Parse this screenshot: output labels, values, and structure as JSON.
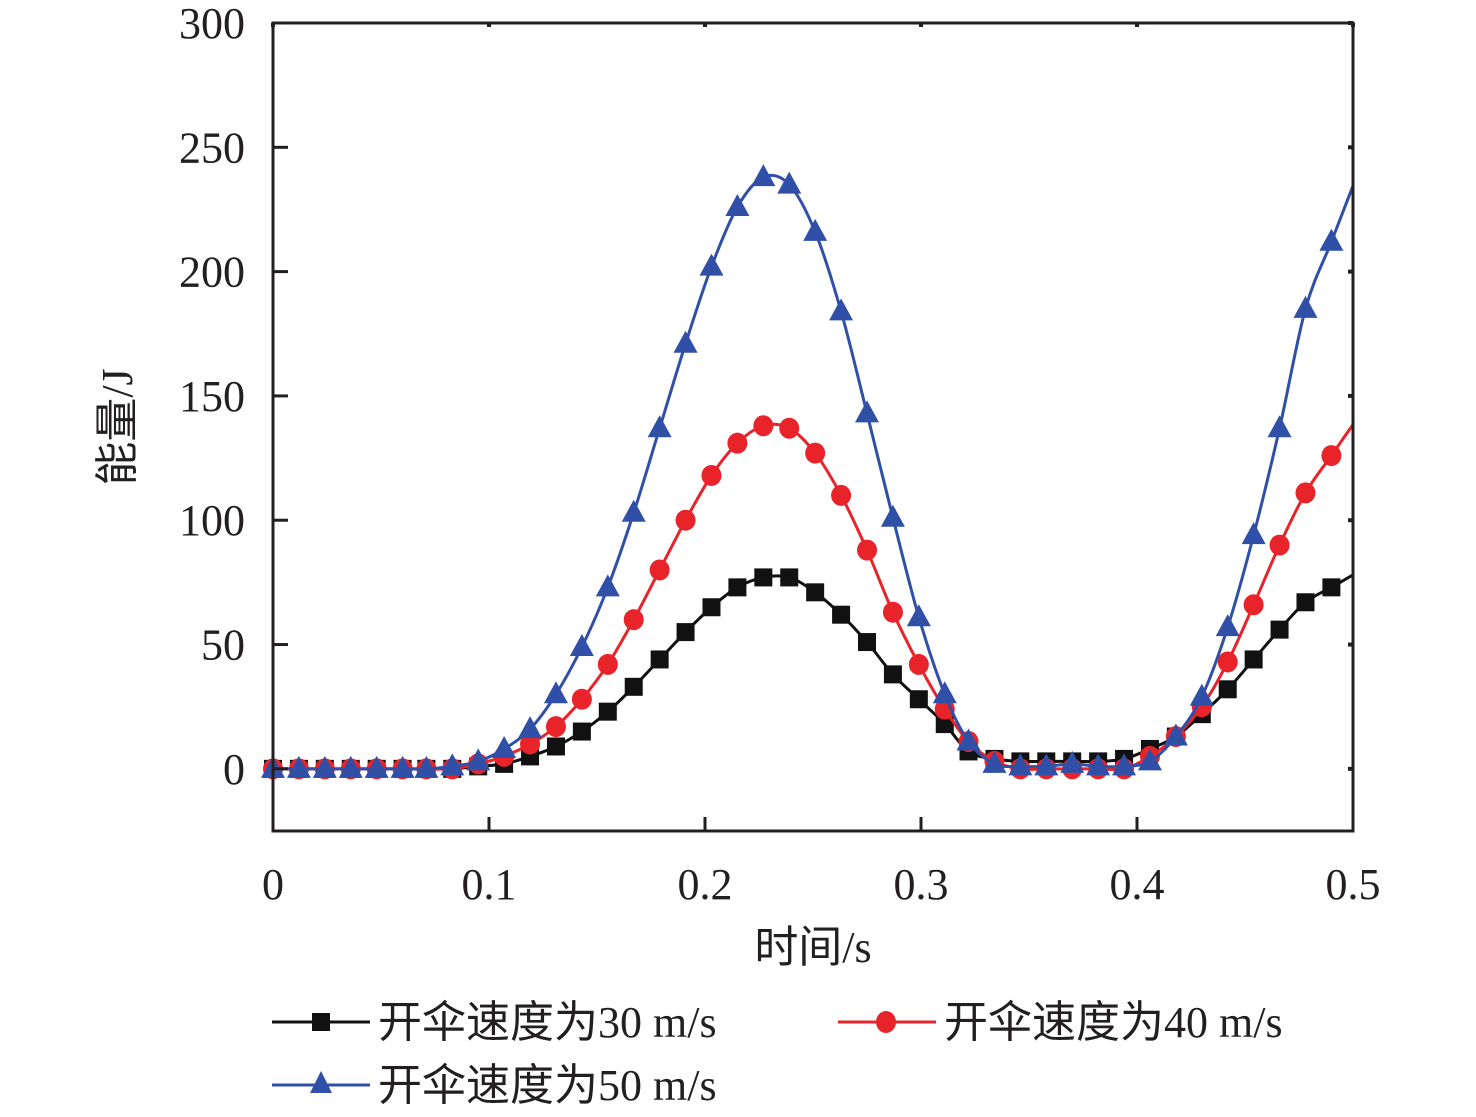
{
  "chart_data": {
    "type": "line",
    "title": "",
    "xlabel": "时间/s",
    "ylabel": "能量/J",
    "xlim": [
      0,
      0.5
    ],
    "ylim": [
      -25,
      300
    ],
    "xticks": [
      "0",
      "0.1",
      "0.2",
      "0.3",
      "0.4",
      "0.5"
    ],
    "xtick_values": [
      0,
      0.1,
      0.2,
      0.3,
      0.4,
      0.5
    ],
    "yticks": [
      "0",
      "50",
      "100",
      "150",
      "200",
      "250",
      "300"
    ],
    "ytick_values": [
      0,
      50,
      100,
      150,
      200,
      250,
      300
    ],
    "grid": false,
    "legend_position": "bottom",
    "x": [
      0,
      0.012,
      0.024,
      0.036,
      0.048,
      0.06,
      0.071,
      0.083,
      0.095,
      0.107,
      0.119,
      0.131,
      0.143,
      0.155,
      0.167,
      0.179,
      0.191,
      0.203,
      0.215,
      0.227,
      0.239,
      0.251,
      0.263,
      0.275,
      0.287,
      0.299,
      0.311,
      0.322,
      0.334,
      0.346,
      0.358,
      0.37,
      0.382,
      0.394,
      0.406,
      0.418,
      0.43,
      0.442,
      0.454,
      0.466,
      0.478,
      0.49
    ],
    "series": [
      {
        "name": "开伞速度为30 m/s",
        "color": "#111111",
        "marker": "square",
        "values": [
          0,
          0,
          0,
          0,
          0,
          0,
          0,
          0,
          1,
          2,
          5,
          9,
          15,
          23,
          33,
          44,
          55,
          65,
          73,
          77,
          77,
          71,
          62,
          51,
          38,
          28,
          18,
          7,
          4,
          3,
          3,
          3,
          3,
          4,
          8,
          13,
          22,
          32,
          44,
          56,
          67,
          73
        ]
      },
      {
        "name": "开伞速度为40 m/s",
        "color": "#e8232a",
        "marker": "circle",
        "values": [
          0,
          0,
          0,
          0,
          0,
          0,
          0,
          0,
          2,
          5,
          10,
          17,
          28,
          42,
          60,
          80,
          100,
          118,
          131,
          138,
          137,
          127,
          110,
          88,
          63,
          42,
          24,
          11,
          3,
          0,
          0,
          0,
          0,
          0,
          5,
          13,
          25,
          43,
          66,
          90,
          111,
          126
        ]
      },
      {
        "name": "开伞速度为50 m/s",
        "color": "#3050a8",
        "marker": "triangle",
        "values": [
          0,
          0,
          0,
          0,
          0,
          0,
          0,
          1,
          3,
          8,
          16,
          30,
          49,
          73,
          103,
          137,
          171,
          202,
          226,
          238,
          235,
          216,
          184,
          143,
          101,
          61,
          30,
          11,
          2,
          1,
          1,
          2,
          1,
          1,
          3,
          13,
          29,
          57,
          94,
          137,
          185,
          212
        ]
      }
    ]
  },
  "legend": {
    "items": [
      {
        "label": "开伞速度为30 m/s"
      },
      {
        "label": "开伞速度为40 m/s"
      },
      {
        "label": "开伞速度为50 m/s"
      }
    ]
  }
}
